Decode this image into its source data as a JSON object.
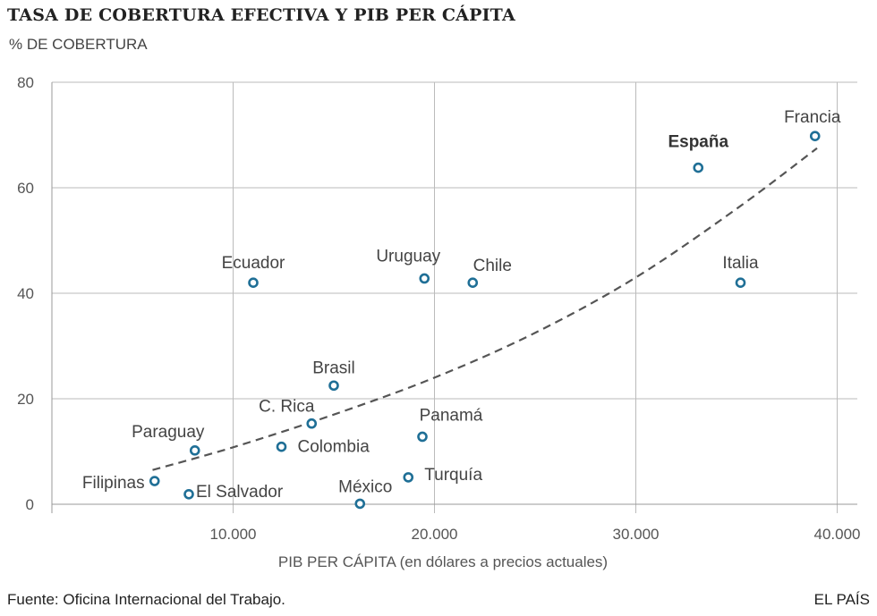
{
  "header": {
    "title": "TASA DE COBERTURA EFECTIVA Y PIB PER CÁPITA",
    "subtitle": "% DE COBERTURA"
  },
  "footer": {
    "source": "Fuente: Oficina Internacional del Trabajo.",
    "brand": "EL PAÍS"
  },
  "colors": {
    "point": "#1f6f96",
    "trend": "#555555",
    "grid": "#bbbbbb"
  },
  "chart_data": {
    "type": "scatter",
    "xlabel": "PIB PER CÁPITA (en dólares a precios actuales)",
    "ylabel": "% DE COBERTURA",
    "xlim": [
      1000,
      41000
    ],
    "ylim": [
      0,
      80
    ],
    "xticks": [
      10000,
      20000,
      30000,
      40000
    ],
    "xtick_labels": [
      "10.000",
      "20.000",
      "30.000",
      "40.000"
    ],
    "yticks": [
      0,
      20,
      40,
      60,
      80
    ],
    "ytick_labels": [
      "0",
      "20",
      "40",
      "60",
      "80"
    ],
    "grid": true,
    "points": [
      {
        "label": "Francia",
        "x": 38900,
        "y": 69.8,
        "highlight": false
      },
      {
        "label": "España",
        "x": 33100,
        "y": 63.8,
        "highlight": true
      },
      {
        "label": "Italia",
        "x": 35200,
        "y": 42.0,
        "highlight": false
      },
      {
        "label": "Chile",
        "x": 21900,
        "y": 42.0,
        "highlight": false
      },
      {
        "label": "Uruguay",
        "x": 19500,
        "y": 42.8,
        "highlight": false
      },
      {
        "label": "Ecuador",
        "x": 11000,
        "y": 42.0,
        "highlight": false
      },
      {
        "label": "Brasil",
        "x": 15000,
        "y": 22.5,
        "highlight": false
      },
      {
        "label": "C. Rica",
        "x": 13900,
        "y": 15.3,
        "highlight": false
      },
      {
        "label": "Colombia",
        "x": 12400,
        "y": 10.9,
        "highlight": false
      },
      {
        "label": "Panamá",
        "x": 19400,
        "y": 12.8,
        "highlight": false
      },
      {
        "label": "Turquía",
        "x": 18700,
        "y": 5.1,
        "highlight": false
      },
      {
        "label": "México",
        "x": 16300,
        "y": 0.1,
        "highlight": false
      },
      {
        "label": "Paraguay",
        "x": 8100,
        "y": 10.2,
        "highlight": false
      },
      {
        "label": "Filipinas",
        "x": 6100,
        "y": 4.4,
        "highlight": false
      },
      {
        "label": "El Salvador",
        "x": 7800,
        "y": 1.9,
        "highlight": false
      }
    ],
    "trendline": {
      "style": "dashed",
      "points": [
        [
          6000,
          6.5
        ],
        [
          10000,
          10.8
        ],
        [
          15000,
          17.0
        ],
        [
          20000,
          24.0
        ],
        [
          25000,
          32.5
        ],
        [
          30000,
          43.0
        ],
        [
          35000,
          56.0
        ],
        [
          39000,
          67.5
        ]
      ]
    }
  }
}
